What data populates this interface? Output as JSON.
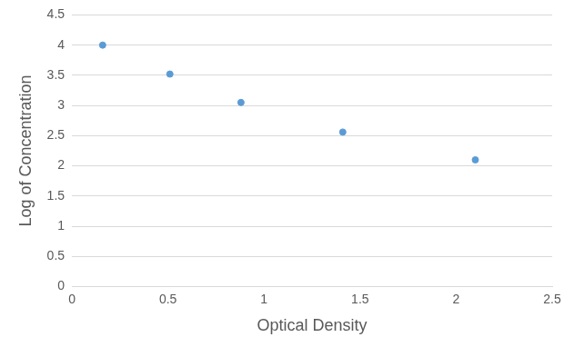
{
  "chart_data": {
    "type": "scatter",
    "x_label": "Optical Density",
    "y_label": "Log of Concentration",
    "x": [
      0.16,
      0.51,
      0.88,
      1.41,
      2.1
    ],
    "values": [
      4.0,
      3.52,
      3.05,
      2.56,
      2.1
    ],
    "color": "#5b9bd5",
    "marker": "circle",
    "xlim": [
      0,
      2.5
    ],
    "xticks": [
      0,
      0.5,
      1,
      1.5,
      2,
      2.5
    ],
    "ylim": [
      0,
      4.5
    ],
    "yticks": [
      0,
      0.5,
      1,
      1.5,
      2,
      2.5,
      3,
      3.5,
      4,
      4.5
    ],
    "grid": true
  }
}
